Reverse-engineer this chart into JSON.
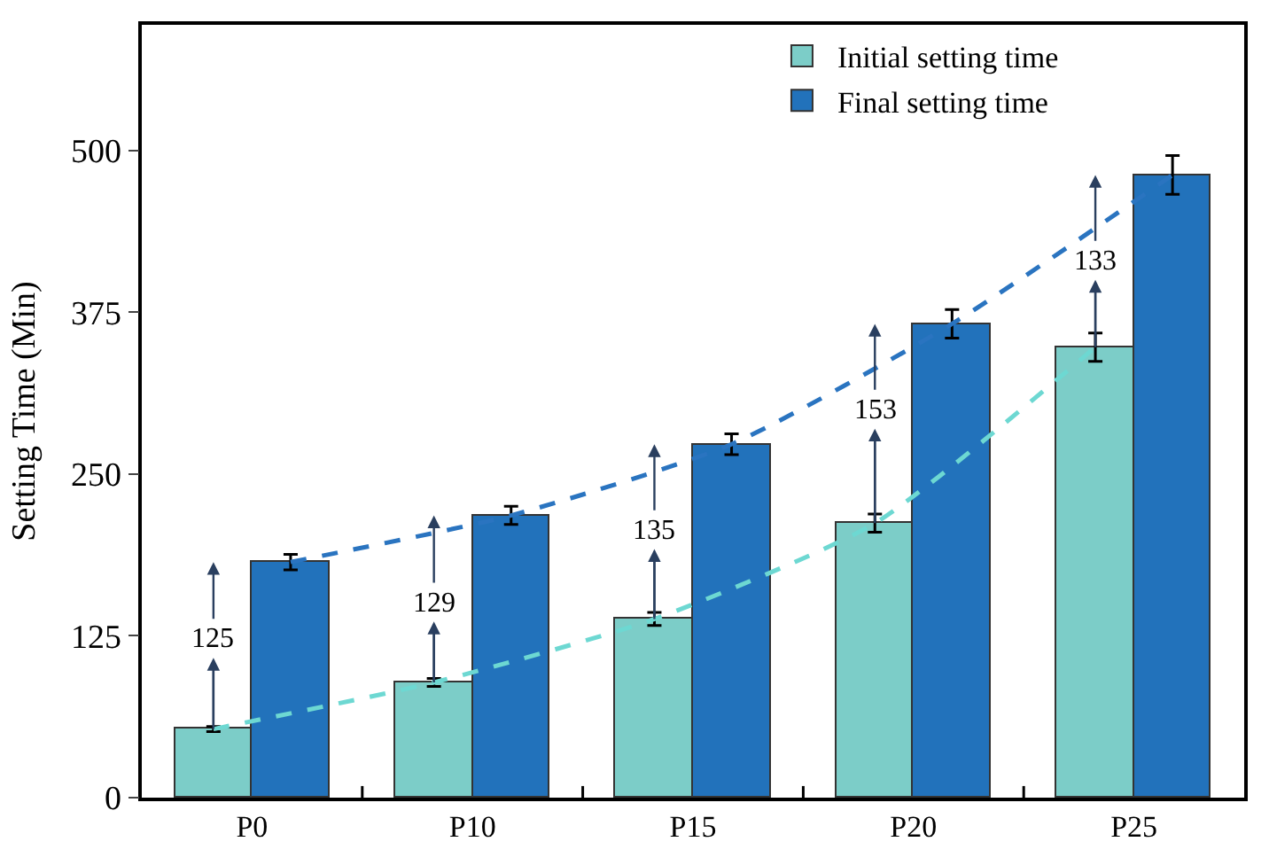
{
  "chart_data": {
    "type": "bar",
    "ylabel": "Setting Time (Min)",
    "categories": [
      "P0",
      "P10",
      "P15",
      "P20",
      "P25"
    ],
    "series": [
      {
        "name": "Initial setting time",
        "color": "#7ccdc8",
        "values": [
          53,
          89,
          138,
          212,
          348
        ],
        "errors": [
          2,
          3,
          5,
          7,
          11
        ]
      },
      {
        "name": "Final setting time",
        "color": "#2272bb",
        "values": [
          182,
          218,
          273,
          366,
          481
        ],
        "errors": [
          6,
          7,
          8,
          11,
          15
        ]
      },
      {
        "type": "line",
        "color": "#6dd8d2",
        "values": [
          53,
          89,
          138,
          212,
          348
        ],
        "line_style": "dashed"
      },
      {
        "type": "line",
        "color": "#2a74c0",
        "values": [
          182,
          218,
          273,
          366,
          481
        ],
        "line_style": "dashed"
      }
    ],
    "annotations": [
      {
        "text": "125",
        "x": "P0",
        "y": 122
      },
      {
        "text": "129",
        "x": "P10",
        "y": 150
      },
      {
        "text": "135",
        "x": "P15",
        "y": 206
      },
      {
        "text": "153",
        "x": "P20",
        "y": 299
      },
      {
        "text": "133",
        "x": "P25",
        "y": 414
      }
    ],
    "ylim": [
      0,
      597
    ],
    "yticks": [
      0,
      125,
      250,
      375,
      500
    ],
    "legend": "top right"
  }
}
